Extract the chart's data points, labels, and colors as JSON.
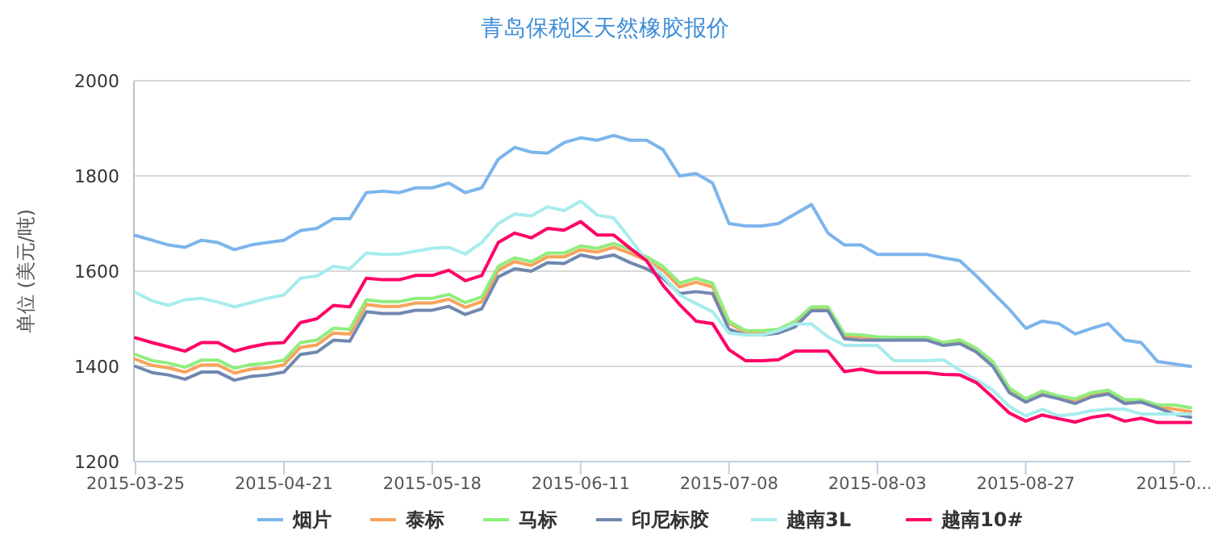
{
  "chart_data": {
    "type": "line",
    "title": "青岛保税区天然橡胶报价",
    "ylabel": "单位 (美元/吨)",
    "categories": [
      "2015-03-25",
      null,
      null,
      null,
      null,
      null,
      null,
      null,
      null,
      "2015-04-21",
      null,
      null,
      null,
      null,
      null,
      null,
      null,
      null,
      "2015-05-18",
      null,
      null,
      null,
      null,
      null,
      null,
      null,
      null,
      "2015-06-11",
      null,
      null,
      null,
      null,
      null,
      null,
      null,
      null,
      "2015-07-08",
      null,
      null,
      null,
      null,
      null,
      null,
      null,
      null,
      "2015-08-03",
      null,
      null,
      null,
      null,
      null,
      null,
      null,
      null,
      "2015-08-27",
      null,
      null,
      null,
      null,
      null,
      null,
      null,
      null,
      "2015-0...",
      null
    ],
    "ylim": [
      1200,
      2000
    ],
    "yticks": [
      1200,
      1400,
      1600,
      1800,
      2000
    ],
    "grid": "y",
    "legend": "bottom",
    "marker": "none",
    "line_style": "solid",
    "series": [
      {
        "name": "烟片",
        "color": "#7cb5ec",
        "values": [
          1675,
          1665,
          1655,
          1650,
          1665,
          1660,
          1645,
          1655,
          1660,
          1665,
          1685,
          1690,
          1710,
          1710,
          1765,
          1768,
          1765,
          1775,
          1775,
          1785,
          1765,
          1775,
          1835,
          1860,
          1850,
          1848,
          1870,
          1880,
          1875,
          1885,
          1875,
          1875,
          1855,
          1800,
          1805,
          1785,
          1700,
          1695,
          1695,
          1700,
          1720,
          1740,
          1680,
          1655,
          1655,
          1635,
          1635,
          1635,
          1635,
          1628,
          1622,
          1590,
          1555,
          1520,
          1480,
          1495,
          1490,
          1468,
          1480,
          1490,
          1455,
          1450,
          1410,
          1405,
          1400
        ]
      },
      {
        "name": "泰标",
        "color": "#f7a35c",
        "values": [
          1415,
          1402,
          1397,
          1388,
          1403,
          1403,
          1386,
          1394,
          1397,
          1403,
          1440,
          1445,
          1470,
          1468,
          1530,
          1526,
          1526,
          1533,
          1533,
          1541,
          1524,
          1536,
          1602,
          1620,
          1612,
          1630,
          1630,
          1645,
          1640,
          1650,
          1638,
          1622,
          1602,
          1567,
          1577,
          1567,
          1491,
          1471,
          1471,
          1474,
          1491,
          1521,
          1521,
          1464,
          1462,
          1458,
          null,
          null,
          1457,
          1446,
          1452,
          1434,
          1406,
          1351,
          1328,
          1344,
          1334,
          1328,
          1341,
          1346,
          1326,
          1326,
          1315,
          1310,
          1305
        ]
      },
      {
        "name": "马标",
        "color": "#90ed7d",
        "values": [
          1425,
          1412,
          1407,
          1398,
          1413,
          1413,
          1396,
          1404,
          1407,
          1413,
          1450,
          1455,
          1480,
          1478,
          1540,
          1536,
          1536,
          1543,
          1543,
          1551,
          1534,
          1546,
          1610,
          1628,
          1620,
          1638,
          1638,
          1653,
          1648,
          1658,
          1646,
          1630,
          1610,
          1575,
          1585,
          1575,
          1495,
          1475,
          1475,
          1478,
          1495,
          1525,
          1525,
          1468,
          1466,
          1462,
          1461,
          1461,
          1461,
          1450,
          1456,
          1438,
          1410,
          1355,
          1332,
          1348,
          1338,
          1332,
          1345,
          1350,
          1330,
          1330,
          1319,
          1319,
          1313
        ]
      },
      {
        "name": "印尼标胶",
        "color": "#7088b0",
        "values": [
          1400,
          1387,
          1382,
          1373,
          1388,
          1388,
          1371,
          1379,
          1382,
          1388,
          1425,
          1430,
          1455,
          1453,
          1515,
          1511,
          1511,
          1518,
          1518,
          1526,
          1509,
          1521,
          1588,
          1605,
          1600,
          1618,
          1616,
          1634,
          1627,
          1634,
          1618,
          1605,
          1585,
          1553,
          1557,
          1553,
          1478,
          1466,
          1466,
          1470,
          1483,
          1517,
          1517,
          1458,
          1455,
          1455,
          1455,
          1455,
          1455,
          1444,
          1448,
          1430,
          1400,
          1345,
          1325,
          1340,
          1332,
          1322,
          1336,
          1342,
          1322,
          1325,
          1313,
          1300,
          1293
        ]
      },
      {
        "name": "越南3L",
        "color": "#a8ecec",
        "values": [
          1555,
          1538,
          1528,
          1540,
          1543,
          1535,
          1525,
          1534,
          1543,
          1550,
          1585,
          1590,
          1610,
          1605,
          1638,
          1635,
          1636,
          1642,
          1648,
          1650,
          1636,
          1660,
          1700,
          1720,
          1716,
          1735,
          1727,
          1747,
          1718,
          1712,
          1668,
          1622,
          1590,
          1550,
          1532,
          1515,
          1470,
          1466,
          1466,
          1475,
          1489,
          1489,
          1462,
          1444,
          1444,
          1444,
          1412,
          1412,
          1412,
          1414,
          1392,
          1372,
          1350,
          1316,
          1296,
          1310,
          1296,
          1300,
          1307,
          1310,
          1310,
          1300,
          1300,
          1300,
          1300
        ]
      },
      {
        "name": "越南10#",
        "color": "#ff0066",
        "values": [
          1460,
          1450,
          1441,
          1432,
          1450,
          1450,
          1432,
          1441,
          1448,
          1450,
          1492,
          1500,
          1528,
          1525,
          1585,
          1582,
          1582,
          1591,
          1591,
          1602,
          1580,
          1591,
          1660,
          1680,
          1670,
          1690,
          1686,
          1704,
          1676,
          1676,
          1648,
          1622,
          1570,
          1530,
          1495,
          1490,
          1435,
          1412,
          1412,
          1414,
          1432,
          1432,
          1432,
          1389,
          1394,
          1387,
          1387,
          1387,
          1387,
          1383,
          1382,
          1366,
          1335,
          1302,
          1285,
          1298,
          1290,
          1283,
          1293,
          1298,
          1285,
          1291,
          1282,
          1282,
          1282
        ]
      }
    ]
  }
}
